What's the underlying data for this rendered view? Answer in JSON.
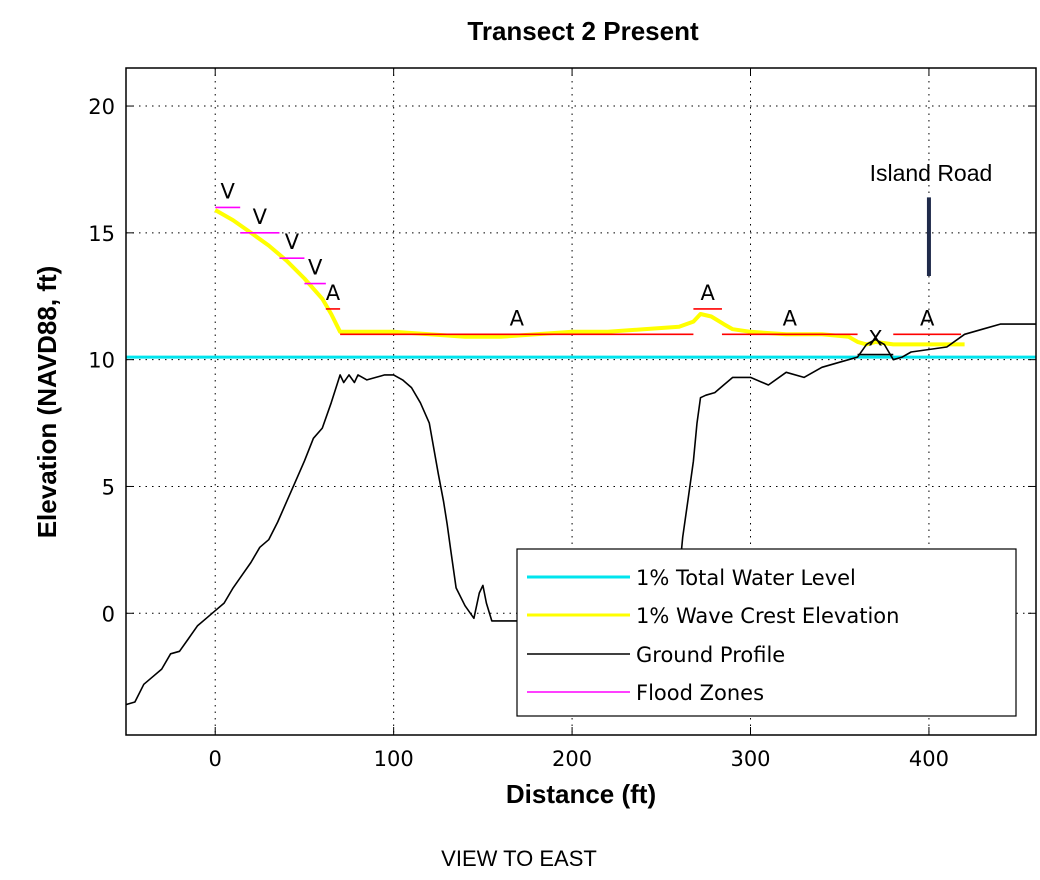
{
  "chart_data": {
    "type": "line",
    "title": "Transect 2 Present",
    "xlabel": "Distance (ft)",
    "ylabel": "Elevation (NAVD88, ft)",
    "xlim": [
      -50,
      460
    ],
    "ylim": [
      -4.8,
      21.5
    ],
    "xticks": [
      0,
      100,
      200,
      300,
      400
    ],
    "yticks": [
      0,
      5,
      10,
      15,
      20
    ],
    "grid": true,
    "legend_position": "bottom-right",
    "series": [
      {
        "name": "1% Total Water Level",
        "color": "#00e5ee",
        "x": [
          -50,
          460
        ],
        "y": [
          10.1,
          10.1
        ]
      },
      {
        "name": "1% Wave Crest Elevation",
        "color": "#ffff00",
        "x": [
          0,
          10,
          20,
          30,
          40,
          50,
          60,
          65,
          70,
          80,
          100,
          120,
          140,
          160,
          180,
          200,
          220,
          240,
          260,
          268,
          272,
          278,
          285,
          290,
          300,
          320,
          340,
          355,
          360,
          365,
          370,
          380,
          400,
          415,
          420
        ],
        "y": [
          15.9,
          15.5,
          15.0,
          14.5,
          13.9,
          13.2,
          12.4,
          11.8,
          11.1,
          11.1,
          11.1,
          11.0,
          10.9,
          10.9,
          11.0,
          11.1,
          11.1,
          11.2,
          11.3,
          11.5,
          11.8,
          11.7,
          11.4,
          11.2,
          11.1,
          11.0,
          11.0,
          10.9,
          10.7,
          10.6,
          10.7,
          10.6,
          10.6,
          10.6,
          10.6
        ]
      },
      {
        "name": "Ground Profile",
        "color": "#000000",
        "x": [
          -50,
          -45,
          -40,
          -35,
          -30,
          -25,
          -20,
          -15,
          -10,
          -5,
          0,
          5,
          10,
          15,
          20,
          25,
          30,
          35,
          40,
          45,
          50,
          55,
          60,
          65,
          70,
          72,
          75,
          78,
          80,
          85,
          90,
          95,
          100,
          105,
          110,
          115,
          120,
          125,
          128,
          130,
          132,
          135,
          140,
          145,
          148,
          150,
          152,
          155,
          160,
          170,
          180,
          200,
          220,
          240,
          250,
          255,
          258,
          260,
          262,
          265,
          268,
          270,
          272,
          275,
          280,
          285,
          290,
          300,
          310,
          320,
          330,
          340,
          350,
          360,
          365,
          370,
          375,
          380,
          385,
          390,
          400,
          410,
          420,
          430,
          440,
          450,
          460
        ],
        "y": [
          -3.6,
          -3.5,
          -2.8,
          -2.5,
          -2.2,
          -1.6,
          -1.5,
          -1.0,
          -0.5,
          -0.2,
          0.1,
          0.4,
          1.0,
          1.5,
          2.0,
          2.6,
          2.9,
          3.6,
          4.4,
          5.2,
          6.0,
          6.9,
          7.3,
          8.3,
          9.4,
          9.1,
          9.4,
          9.1,
          9.4,
          9.2,
          9.3,
          9.4,
          9.4,
          9.2,
          8.9,
          8.3,
          7.5,
          5.5,
          4.4,
          3.5,
          2.5,
          1.0,
          0.3,
          -0.2,
          0.8,
          1.1,
          0.4,
          -0.3,
          -0.3,
          -0.3,
          -0.3,
          -0.3,
          -0.3,
          -0.3,
          -0.3,
          -0.3,
          0.0,
          1.5,
          3.0,
          4.5,
          6.0,
          7.5,
          8.5,
          8.6,
          8.7,
          9.0,
          9.3,
          9.3,
          9.0,
          9.5,
          9.3,
          9.7,
          9.9,
          10.1,
          10.6,
          10.8,
          10.6,
          10.0,
          10.1,
          10.3,
          10.4,
          10.5,
          11.0,
          11.2,
          11.4,
          11.4,
          11.4
        ]
      }
    ],
    "flood_zones": {
      "name": "Flood Zones",
      "segments": [
        {
          "label": "V",
          "x0": 0,
          "x1": 14,
          "y": 16,
          "color": "#ff00ff"
        },
        {
          "label": "V",
          "x0": 14,
          "x1": 36,
          "y": 15,
          "color": "#ff00ff"
        },
        {
          "label": "V",
          "x0": 36,
          "x1": 50,
          "y": 14,
          "color": "#ff00ff"
        },
        {
          "label": "V",
          "x0": 50,
          "x1": 62,
          "y": 13,
          "color": "#ff00ff"
        },
        {
          "label": "A",
          "x0": 62,
          "x1": 70,
          "y": 12,
          "color": "#ff0000"
        },
        {
          "label": "A",
          "x0": 70,
          "x1": 268,
          "y": 11,
          "color": "#ff0000"
        },
        {
          "label": "A",
          "x0": 268,
          "x1": 284,
          "y": 12,
          "color": "#ff0000"
        },
        {
          "label": "A",
          "x0": 284,
          "x1": 360,
          "y": 11,
          "color": "#ff0000"
        },
        {
          "label": "X",
          "x0": 360,
          "x1": 380,
          "y": 10.2,
          "color": "#000000"
        },
        {
          "label": "A",
          "x0": 380,
          "x1": 418,
          "y": 11,
          "color": "#ff0000"
        }
      ]
    },
    "annotations": [
      {
        "text": "Island Road",
        "x": 400
      }
    ]
  },
  "footer_text": "VIEW TO EAST"
}
